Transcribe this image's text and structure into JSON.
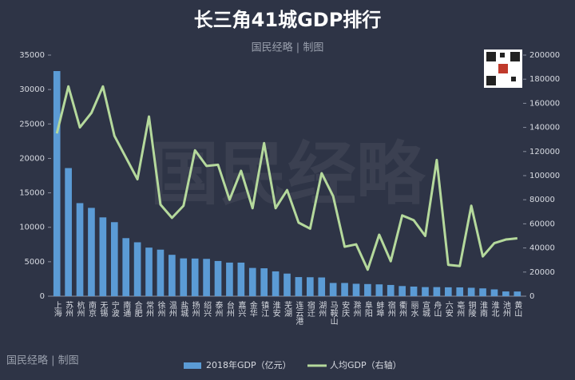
{
  "chart_data": {
    "type": "bar_line",
    "title": "长三角41城GDP排行",
    "subtitle": "国民经略 | 制图",
    "credit": "国民经略 | 制图",
    "watermark": "国民经略",
    "categories": [
      "上海",
      "苏州",
      "杭州",
      "南京",
      "无锡",
      "宁波",
      "南通",
      "合肥",
      "常州",
      "徐州",
      "温州",
      "盐城",
      "扬州",
      "绍兴",
      "泰州",
      "台州",
      "嘉兴",
      "金华",
      "镇江",
      "淮安",
      "芜湖",
      "连云港",
      "宿迁",
      "湖州",
      "马鞍山",
      "安庆",
      "滁州",
      "阜阳",
      "蚌埠",
      "宿州",
      "衢州",
      "丽水",
      "宣城",
      "舟山",
      "六安",
      "亳州",
      "铜陵",
      "淮南",
      "淮北",
      "池州",
      "黄山"
    ],
    "series": [
      {
        "name": "2018年GDP（亿元）",
        "color": "#5b9bd5",
        "type": "bar",
        "values": [
          32680,
          18597,
          13509,
          12820,
          11439,
          10746,
          8427,
          7823,
          7050,
          6755,
          6006,
          5487,
          5466,
          5417,
          5108,
          4875,
          4872,
          4100,
          4050,
          3601,
          3279,
          2772,
          2750,
          2719,
          1919,
          1918,
          1801,
          1760,
          1714,
          1630,
          1471,
          1394,
          1317,
          1317,
          1288,
          1277,
          1222,
          1134,
          985,
          685,
          678
        ]
      },
      {
        "name": "人均GDP（右轴）",
        "color": "#b5d99c",
        "type": "line",
        "axis": "y2",
        "values": [
          135000,
          174000,
          140000,
          152000,
          174000,
          133000,
          115000,
          97000,
          149000,
          76000,
          65000,
          75000,
          121000,
          108000,
          109000,
          80000,
          104000,
          73000,
          127000,
          73000,
          88000,
          61000,
          56000,
          102000,
          83000,
          41000,
          43000,
          22000,
          51000,
          29000,
          67000,
          63000,
          50000,
          113000,
          26000,
          25000,
          75000,
          33000,
          44000,
          47000,
          48000
        ]
      }
    ],
    "ylim": [
      0,
      35000
    ],
    "yticks": [
      0,
      5000,
      10000,
      15000,
      20000,
      25000,
      30000,
      35000
    ],
    "y2lim": [
      0,
      200000
    ],
    "y2ticks": [
      0,
      20000,
      40000,
      60000,
      80000,
      100000,
      120000,
      140000,
      160000,
      180000,
      200000
    ],
    "legend": "bottom"
  }
}
